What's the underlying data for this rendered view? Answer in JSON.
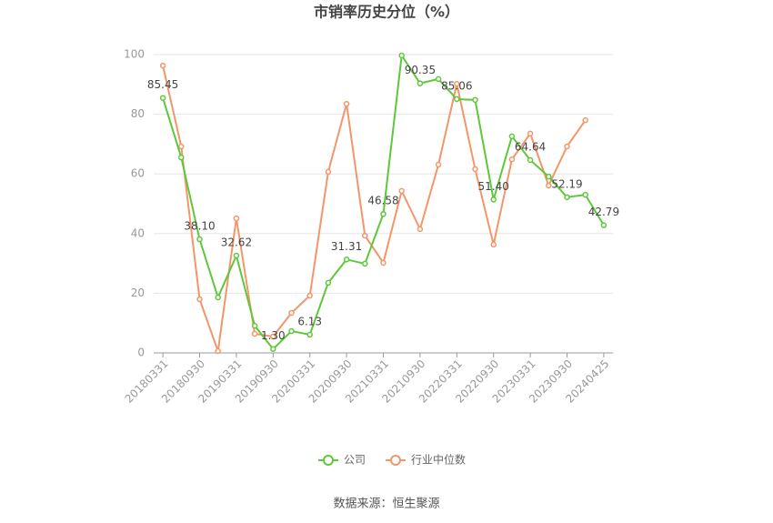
{
  "chart_data": {
    "type": "line",
    "title": "市销率历史分位（%）",
    "source": "数据来源：恒生聚源",
    "categories": [
      "20180331",
      null,
      "20180930",
      null,
      "20190331",
      null,
      "20190930",
      null,
      "20200331",
      null,
      "20200930",
      null,
      "20210331",
      null,
      "20210930",
      null,
      "20220331",
      null,
      "20220930",
      null,
      "20230331",
      null,
      "20230930",
      null,
      "20240425"
    ],
    "series": [
      {
        "name": "公司",
        "color": "#5ec83a",
        "values": [
          85.45,
          65.5,
          38.1,
          18.6,
          32.62,
          9.1,
          1.3,
          7.3,
          6.13,
          23.5,
          31.31,
          29.9,
          46.58,
          99.7,
          90.35,
          91.8,
          85.06,
          84.8,
          51.4,
          72.6,
          64.64,
          59.1,
          52.19,
          53.0,
          42.79
        ],
        "value_labels": [
          "85.45",
          null,
          "38.10",
          null,
          "32.62",
          null,
          "1.30",
          null,
          "6.13",
          null,
          "31.31",
          null,
          "46.58",
          null,
          "90.35",
          null,
          "85.06",
          null,
          "51.40",
          null,
          "64.64",
          null,
          "52.19",
          null,
          "42.79"
        ]
      },
      {
        "name": "行业中位数",
        "color": "#f4956a",
        "values": [
          96.3,
          69.2,
          18.0,
          0.6,
          45.1,
          6.4,
          5.5,
          13.4,
          19.2,
          60.7,
          83.5,
          39.3,
          30.2,
          54.3,
          41.5,
          63.1,
          90.2,
          61.6,
          36.3,
          64.9,
          73.5,
          56.1,
          69.2,
          78.0,
          null
        ]
      }
    ],
    "ylim": [
      0,
      100
    ],
    "yticks": [
      0,
      20,
      40,
      60,
      80,
      100
    ],
    "grid": true,
    "legend": "bottom"
  }
}
